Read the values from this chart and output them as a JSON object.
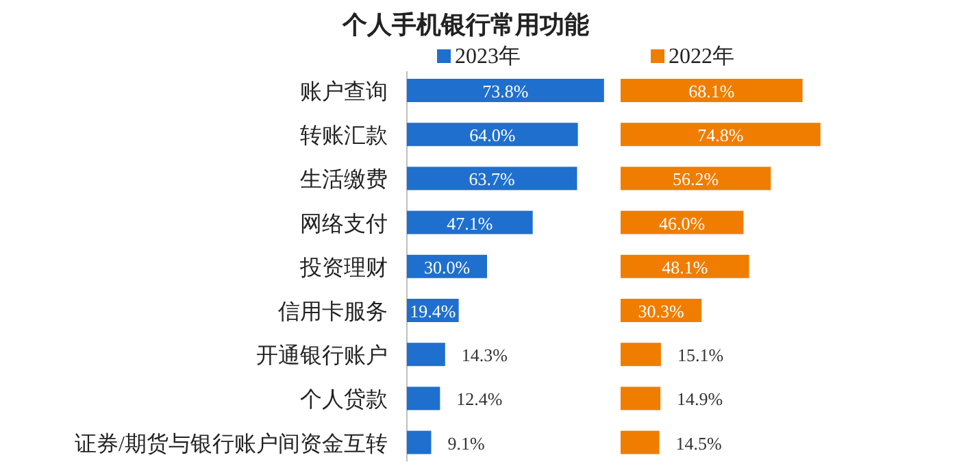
{
  "chart_data": [
    {
      "type": "bar",
      "orientation": "horizontal",
      "title": "个人手机银行常用功能",
      "categories": [
        "账户查询",
        "转账汇款",
        "生活缴费",
        "网络支付",
        "投资理财",
        "信用卡服务",
        "开通银行账户",
        "个人贷款",
        "证券/期货与银行账户间资金互转"
      ],
      "series": [
        {
          "name": "2023年",
          "color": "#1f6fce",
          "values": [
            73.8,
            64.0,
            63.7,
            47.1,
            30.0,
            19.4,
            14.3,
            12.4,
            9.1
          ],
          "value_labels": [
            "73.8%",
            "64.0%",
            "63.7%",
            "47.1%",
            "30.0%",
            "19.4%",
            "14.3%",
            "12.4%",
            "9.1%"
          ]
        }
      ],
      "legend": "top"
    },
    {
      "type": "bar",
      "orientation": "horizontal",
      "categories": [
        null,
        null,
        null,
        null,
        null,
        null,
        null,
        null,
        null
      ],
      "series": [
        {
          "name": "2022年",
          "color": "#f07d00",
          "values": [
            68.1,
            74.8,
            56.2,
            46.0,
            48.1,
            30.3,
            15.1,
            14.9,
            14.5
          ],
          "value_labels": [
            "68.1%",
            "74.8%",
            "56.2%",
            "46.0%",
            "48.1%",
            "30.3%",
            "15.1%",
            "14.9%",
            "14.5%"
          ]
        }
      ],
      "legend": "top"
    }
  ]
}
